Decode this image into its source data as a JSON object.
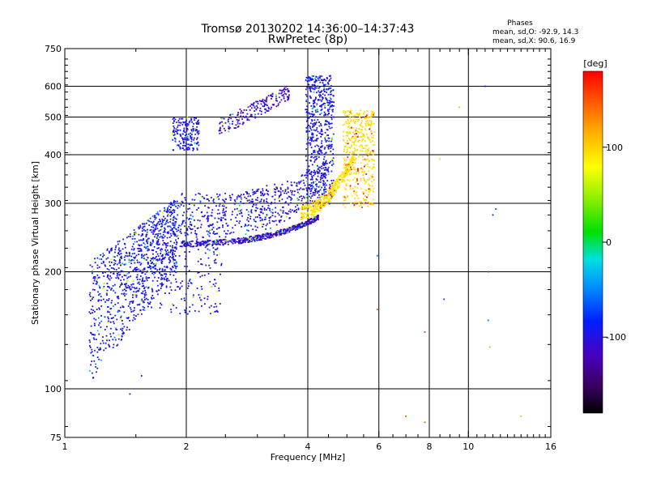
{
  "chart_data": {
    "type": "scatter",
    "title": "Tromsø 20130202 14:36:00–14:37:43",
    "subtitle": "RwPretec (8p)",
    "xlabel": "Frequency [MHz]",
    "ylabel": "Stationary phase Virtual Height [km]",
    "x_scale": "log",
    "y_scale": "log",
    "xlim": [
      1,
      16
    ],
    "ylim": [
      75,
      750
    ],
    "x_ticks": [
      1,
      2,
      4,
      6,
      8,
      10,
      16
    ],
    "y_ticks": [
      75,
      100,
      200,
      300,
      400,
      500,
      600,
      750
    ],
    "x_grid": [
      2,
      4,
      6,
      8,
      10
    ],
    "y_grid": [
      100,
      200,
      300,
      400,
      500,
      600
    ],
    "grid": true,
    "info": {
      "header": "Phases",
      "line1": "mean, sd,O:  -92.9, 14.3",
      "line2": "mean, sd,X:  90.6, 16.9"
    },
    "colorbar": {
      "label": "[deg]",
      "range": [
        -180,
        180
      ],
      "ticks": [
        100,
        0,
        -100
      ],
      "position": "right"
    },
    "traces": [
      {
        "desc": "lower E/F1 cloud",
        "x": [
          1.2,
          2.1
        ],
        "y": [
          118,
          300
        ],
        "phase": -95
      },
      {
        "desc": "O-mode F trace",
        "x": [
          1.8,
          4.6
        ],
        "y": [
          230,
          330
        ],
        "phase": -100
      },
      {
        "desc": "O-mode F lower branch",
        "x": [
          2.0,
          4.3
        ],
        "y": [
          235,
          275
        ],
        "phase": -115
      },
      {
        "desc": "O-mode cusp",
        "x": [
          3.8,
          4.7
        ],
        "y": [
          300,
          640
        ],
        "phase": -100
      },
      {
        "desc": "upper spread",
        "x": [
          1.8,
          3.7
        ],
        "y": [
          400,
          595
        ],
        "phase": -110
      },
      {
        "desc": "X-mode trace",
        "x": [
          3.8,
          5.9
        ],
        "y": [
          270,
          530
        ],
        "phase": 95
      }
    ],
    "scattered_points": [
      {
        "x": 6.0,
        "y": 590,
        "phase": 120
      },
      {
        "x": 5.95,
        "y": 220,
        "phase": -60
      },
      {
        "x": 5.95,
        "y": 160,
        "phase": 150
      },
      {
        "x": 7.0,
        "y": 85,
        "phase": 150
      },
      {
        "x": 7.8,
        "y": 140,
        "phase": 160
      },
      {
        "x": 7.8,
        "y": 82,
        "phase": 150
      },
      {
        "x": 8.5,
        "y": 390,
        "phase": 60
      },
      {
        "x": 8.7,
        "y": 170,
        "phase": -80
      },
      {
        "x": 9.5,
        "y": 530,
        "phase": 110
      },
      {
        "x": 11.0,
        "y": 600,
        "phase": -90
      },
      {
        "x": 11.2,
        "y": 200,
        "phase": -70
      },
      {
        "x": 11.2,
        "y": 150,
        "phase": -60
      },
      {
        "x": 11.3,
        "y": 128,
        "phase": 120
      },
      {
        "x": 11.5,
        "y": 280,
        "phase": -90
      },
      {
        "x": 11.7,
        "y": 290,
        "phase": -80
      },
      {
        "x": 13.5,
        "y": 85,
        "phase": 110
      },
      {
        "x": 1.45,
        "y": 97,
        "phase": -95
      },
      {
        "x": 1.55,
        "y": 108,
        "phase": -100
      }
    ]
  }
}
